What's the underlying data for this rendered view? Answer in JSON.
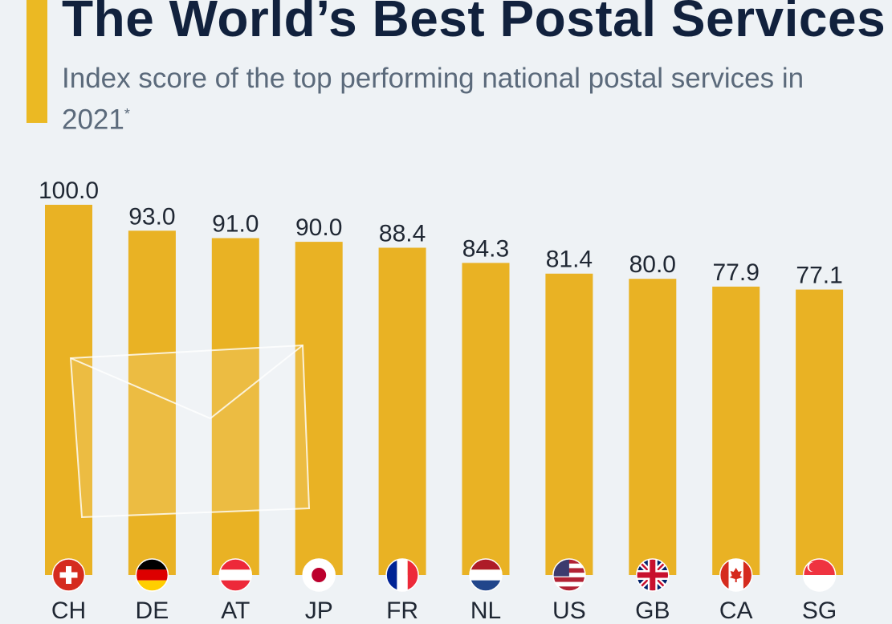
{
  "header": {
    "title": "The World’s Best Postal Services",
    "subtitle": "Index score of the top performing national postal services in 2021",
    "footnote_marker": "*"
  },
  "colors": {
    "background": "#eef2f5",
    "accent": "#ebb923",
    "bar": "#e9b224",
    "title": "#11213d",
    "subtitle": "#5b6a7b"
  },
  "decoration": {
    "icon": "envelope-icon"
  },
  "chart_data": {
    "type": "bar",
    "title": "The World’s Best Postal Services",
    "subtitle": "Index score of the top performing national postal services in 2021",
    "categories": [
      "CH",
      "DE",
      "AT",
      "JP",
      "FR",
      "NL",
      "US",
      "GB",
      "CA",
      "SG"
    ],
    "values": [
      100.0,
      93.0,
      91.0,
      90.0,
      88.4,
      84.3,
      81.4,
      80.0,
      77.9,
      77.1
    ],
    "value_labels": [
      "100.0",
      "93.0",
      "91.0",
      "90.0",
      "88.4",
      "84.3",
      "81.4",
      "80.0",
      "77.9",
      "77.1"
    ],
    "flag_icons": [
      "switzerland-flag-icon",
      "germany-flag-icon",
      "austria-flag-icon",
      "japan-flag-icon",
      "france-flag-icon",
      "netherlands-flag-icon",
      "usa-flag-icon",
      "uk-flag-icon",
      "canada-flag-icon",
      "singapore-flag-icon"
    ],
    "xlabel": "",
    "ylabel": "",
    "ylim": [
      0,
      100
    ],
    "grid": false
  }
}
